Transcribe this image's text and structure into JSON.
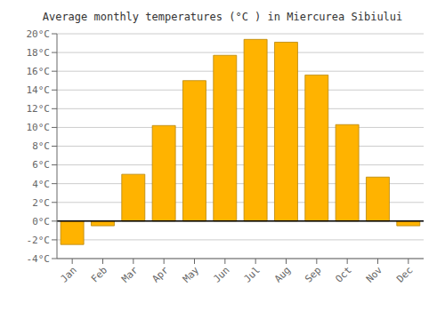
{
  "chart_data": {
    "type": "bar",
    "title": "Average monthly temperatures (°C ) in Miercurea Sibiului",
    "categories": [
      "Jan",
      "Feb",
      "Mar",
      "Apr",
      "May",
      "Jun",
      "Jul",
      "Aug",
      "Sep",
      "Oct",
      "Nov",
      "Dec"
    ],
    "values": [
      -2.5,
      -0.5,
      5.0,
      10.2,
      15.0,
      17.7,
      19.4,
      19.1,
      15.6,
      10.3,
      4.7,
      -0.5
    ],
    "color": "#FFB300",
    "ylim": [
      -4,
      20
    ],
    "yticks": [
      {
        "value": -4,
        "label": "-4°C"
      },
      {
        "value": -2,
        "label": "-2°C"
      },
      {
        "value": 0,
        "label": "0°C"
      },
      {
        "value": 2,
        "label": "2°C"
      },
      {
        "value": 4,
        "label": "4°C"
      },
      {
        "value": 6,
        "label": "6°C"
      },
      {
        "value": 8,
        "label": "8°C"
      },
      {
        "value": 10,
        "label": "10°C"
      },
      {
        "value": 12,
        "label": "12°C"
      },
      {
        "value": 14,
        "label": "14°C"
      },
      {
        "value": 16,
        "label": "16°C"
      },
      {
        "value": 18,
        "label": "18°C"
      },
      {
        "value": 20,
        "label": "20°C"
      }
    ],
    "grid": true
  }
}
